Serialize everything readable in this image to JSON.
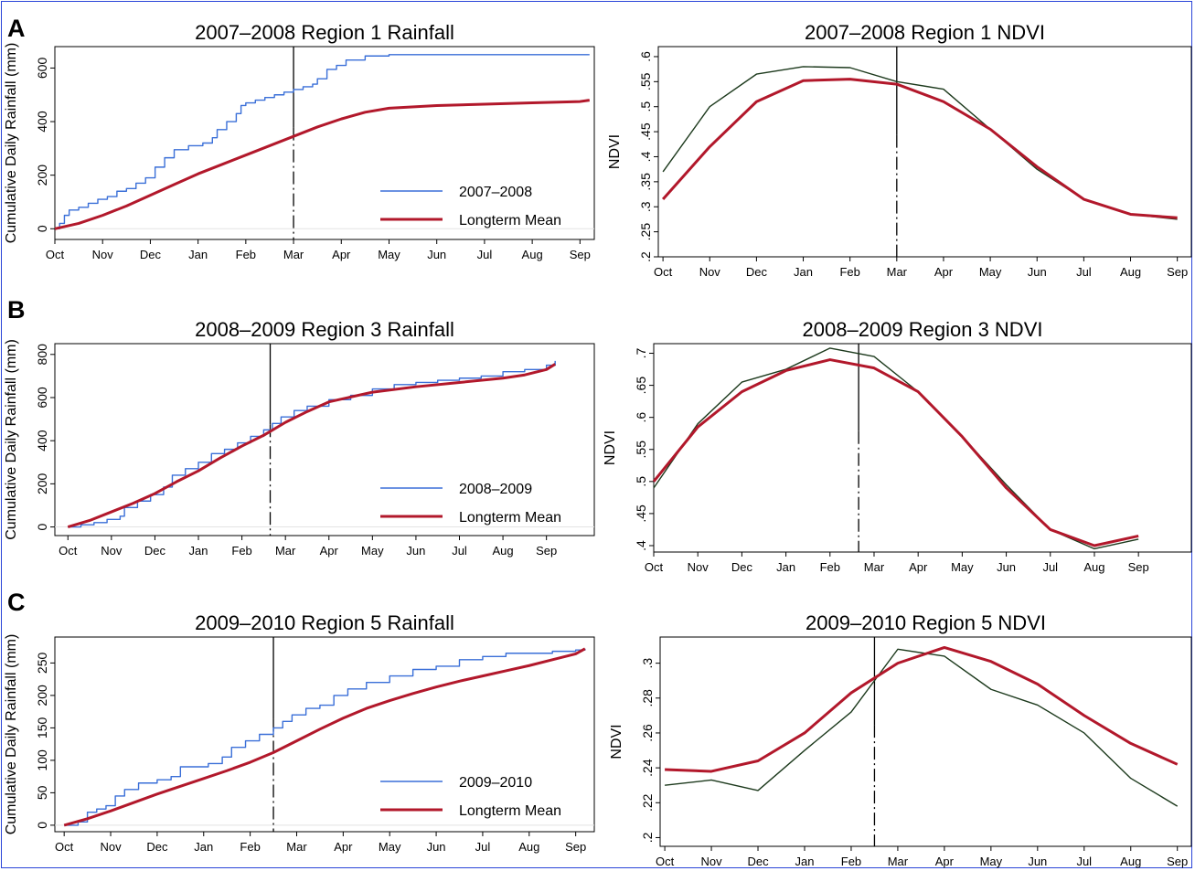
{
  "colors": {
    "frame": "#2a45d8",
    "rain_year": "#3a6fd8",
    "rain_mean": "#b2182b",
    "ndvi_year": "#1d3a1d",
    "ndvi_mean": "#b2182b"
  },
  "panels": [
    {
      "letter": "A"
    },
    {
      "letter": "B"
    },
    {
      "letter": "C"
    }
  ],
  "chart_data": [
    {
      "type": "line",
      "panel": "A",
      "title": "2007–2008 Region 1 Rainfall",
      "ylabel": "Cumulative Daily Rainfall (mm)",
      "xlabel": "",
      "x_ticks": [
        "Oct",
        "Nov",
        "Dec",
        "Jan",
        "Feb",
        "Mar",
        "Apr",
        "May",
        "Jun",
        "Jul",
        "Aug",
        "Sep"
      ],
      "xlim": [
        0,
        11.3
      ],
      "ylim": [
        -40,
        680
      ],
      "y_ticks": [
        0,
        200,
        400,
        600
      ],
      "zero_line": true,
      "marker": {
        "x": 5,
        "style": "solid-dashdot"
      },
      "legend_position": "bottom-right",
      "series": [
        {
          "name": "2007–2008",
          "kind": "step",
          "color": "#3a6fd8",
          "width": 1.4,
          "x": [
            0,
            0.1,
            0.2,
            0.3,
            0.5,
            0.7,
            0.9,
            1.1,
            1.3,
            1.5,
            1.7,
            1.9,
            2.1,
            2.3,
            2.5,
            2.8,
            3.1,
            3.3,
            3.4,
            3.6,
            3.8,
            3.9,
            4.0,
            4.2,
            4.4,
            4.6,
            4.8,
            5.0,
            5.2,
            5.4,
            5.5,
            5.7,
            5.9,
            6.1,
            6.5,
            7.0,
            8.0,
            9.0,
            10.0,
            11.0,
            11.2
          ],
          "y": [
            0,
            20,
            50,
            70,
            80,
            95,
            110,
            120,
            140,
            150,
            170,
            190,
            230,
            265,
            295,
            310,
            320,
            340,
            370,
            400,
            430,
            460,
            470,
            480,
            490,
            500,
            510,
            520,
            530,
            540,
            560,
            595,
            610,
            630,
            645,
            650,
            650,
            650,
            650,
            650,
            650
          ]
        },
        {
          "name": "Longterm Mean",
          "kind": "line",
          "color": "#b2182b",
          "width": 3,
          "x": [
            0,
            0.5,
            1,
            1.5,
            2,
            2.5,
            3,
            3.5,
            4,
            4.5,
            5,
            5.5,
            6,
            6.5,
            7,
            8,
            9,
            10,
            11,
            11.2
          ],
          "y": [
            0,
            20,
            50,
            85,
            125,
            165,
            205,
            240,
            275,
            310,
            345,
            380,
            410,
            435,
            450,
            460,
            465,
            470,
            475,
            480
          ]
        }
      ]
    },
    {
      "type": "line",
      "panel": "A",
      "title": "2007–2008 Region 1 NDVI",
      "ylabel": "NDVI",
      "xlabel": "",
      "x_ticks": [
        "Oct",
        "Nov",
        "Dec",
        "Jan",
        "Feb",
        "Mar",
        "Apr",
        "May",
        "Jun",
        "Jul",
        "Aug",
        "Sep"
      ],
      "xlim": [
        -0.1,
        11.3
      ],
      "ylim": [
        0.2,
        0.62
      ],
      "y_ticks": [
        0.2,
        0.25,
        0.3,
        0.35,
        0.4,
        0.45,
        0.5,
        0.55,
        0.6
      ],
      "y_tick_labels": [
        ".2",
        ".25",
        ".3",
        ".35",
        ".4",
        ".45",
        ".5",
        ".55",
        ".6"
      ],
      "marker": {
        "x": 5,
        "style": "solid-dashdot"
      },
      "series": [
        {
          "kind": "line",
          "color": "#1d3a1d",
          "width": 1.4,
          "x": [
            0,
            1,
            2,
            3,
            4,
            5,
            6,
            7,
            8,
            9,
            10,
            11
          ],
          "y": [
            0.37,
            0.5,
            0.565,
            0.58,
            0.578,
            0.55,
            0.535,
            0.455,
            0.375,
            0.315,
            0.285,
            0.275
          ]
        },
        {
          "kind": "line",
          "color": "#b2182b",
          "width": 3,
          "x": [
            0,
            1,
            2,
            3,
            4,
            5,
            6,
            7,
            8,
            9,
            10,
            11
          ],
          "y": [
            0.315,
            0.42,
            0.51,
            0.552,
            0.555,
            0.545,
            0.51,
            0.455,
            0.38,
            0.315,
            0.285,
            0.278
          ]
        }
      ]
    },
    {
      "type": "line",
      "panel": "B",
      "title": "2008–2009 Region 3 Rainfall",
      "ylabel": "Cumulative Daily Rainfall (mm)",
      "xlabel": "",
      "x_ticks": [
        "Oct",
        "Nov",
        "Dec",
        "Jan",
        "Feb",
        "Mar",
        "Apr",
        "May",
        "Jun",
        "Jul",
        "Aug",
        "Sep"
      ],
      "xlim": [
        -0.3,
        12.1
      ],
      "ylim": [
        -40,
        850
      ],
      "y_ticks": [
        0,
        200,
        400,
        600,
        800
      ],
      "zero_line": true,
      "marker": {
        "x": 4.65,
        "style": "solid-dashdot"
      },
      "legend_position": "bottom-right",
      "series": [
        {
          "name": "2008–2009",
          "kind": "step",
          "color": "#3a6fd8",
          "width": 1.4,
          "x": [
            0,
            0.3,
            0.6,
            0.9,
            1.2,
            1.3,
            1.6,
            1.9,
            2.2,
            2.4,
            2.7,
            3.0,
            3.3,
            3.6,
            3.9,
            4.2,
            4.5,
            4.7,
            4.9,
            5.2,
            5.5,
            6.0,
            6.5,
            7.0,
            7.5,
            8.0,
            8.5,
            9.0,
            9.5,
            10.0,
            10.5,
            11.0,
            11.2
          ],
          "y": [
            0,
            10,
            20,
            35,
            50,
            90,
            120,
            150,
            185,
            240,
            270,
            300,
            340,
            360,
            390,
            420,
            450,
            480,
            510,
            540,
            560,
            590,
            610,
            640,
            660,
            670,
            680,
            690,
            700,
            720,
            730,
            750,
            770
          ]
        },
        {
          "name": "Longterm Mean",
          "kind": "line",
          "color": "#b2182b",
          "width": 3,
          "x": [
            0,
            0.5,
            1,
            1.5,
            2,
            2.5,
            3,
            3.5,
            4,
            4.5,
            5,
            5.5,
            6,
            7,
            8,
            9,
            10,
            10.5,
            11,
            11.2
          ],
          "y": [
            0,
            30,
            70,
            110,
            155,
            210,
            260,
            320,
            375,
            425,
            485,
            535,
            580,
            625,
            650,
            670,
            690,
            705,
            730,
            755
          ]
        }
      ]
    },
    {
      "type": "line",
      "panel": "B",
      "title": "2008–2009 Region 3 NDVI",
      "ylabel": "NDVI",
      "xlabel": "",
      "x_ticks": [
        "Oct",
        "Nov",
        "Dec",
        "Jan",
        "Feb",
        "Mar",
        "Apr",
        "May",
        "Jun",
        "Jul",
        "Aug",
        "Sep"
      ],
      "xlim": [
        0,
        12.2
      ],
      "ylim": [
        0.39,
        0.715
      ],
      "y_ticks": [
        0.4,
        0.45,
        0.5,
        0.55,
        0.6,
        0.65,
        0.7
      ],
      "y_tick_labels": [
        ".4",
        ".45",
        ".5",
        ".55",
        ".6",
        ".65",
        ".7"
      ],
      "marker": {
        "x": 4.65,
        "style": "solid-dashdot"
      },
      "series": [
        {
          "kind": "line",
          "color": "#1d3a1d",
          "width": 1.4,
          "x": [
            0,
            1,
            2,
            3,
            4,
            5,
            6,
            7,
            8,
            9,
            10,
            11
          ],
          "y": [
            0.49,
            0.59,
            0.655,
            0.675,
            0.708,
            0.695,
            0.64,
            0.57,
            0.495,
            0.425,
            0.395,
            0.41
          ]
        },
        {
          "kind": "line",
          "color": "#b2182b",
          "width": 3,
          "x": [
            0,
            1,
            2,
            3,
            4,
            5,
            6,
            7,
            8,
            9,
            10,
            11
          ],
          "y": [
            0.5,
            0.585,
            0.64,
            0.673,
            0.69,
            0.677,
            0.64,
            0.57,
            0.49,
            0.425,
            0.4,
            0.415
          ]
        }
      ]
    },
    {
      "type": "line",
      "panel": "C",
      "title": "2009–2010 Region 5 Rainfall",
      "ylabel": "Cumulative Daily Rainfall (mm)",
      "xlabel": "",
      "x_ticks": [
        "Oct",
        "Nov",
        "Dec",
        "Jan",
        "Feb",
        "Mar",
        "Apr",
        "May",
        "Jun",
        "Jul",
        "Aug",
        "Sep"
      ],
      "xlim": [
        -0.2,
        11.4
      ],
      "ylim": [
        -10,
        290
      ],
      "y_ticks": [
        0,
        50,
        100,
        150,
        200,
        250
      ],
      "zero_line": true,
      "marker": {
        "x": 4.5,
        "style": "solid-dashdot"
      },
      "legend_position": "bottom-right",
      "series": [
        {
          "name": "2009–2010",
          "kind": "step",
          "color": "#3a6fd8",
          "width": 1.4,
          "x": [
            0,
            0.3,
            0.5,
            0.7,
            0.9,
            1.1,
            1.3,
            1.6,
            2.0,
            2.3,
            2.5,
            2.8,
            3.1,
            3.4,
            3.6,
            3.9,
            4.2,
            4.5,
            4.7,
            4.9,
            5.2,
            5.5,
            5.8,
            6.1,
            6.5,
            7.0,
            7.5,
            8.0,
            8.5,
            9.0,
            9.5,
            10.0,
            10.5,
            11.0,
            11.2
          ],
          "y": [
            0,
            5,
            20,
            25,
            30,
            45,
            55,
            65,
            70,
            75,
            90,
            90,
            95,
            105,
            120,
            130,
            140,
            150,
            160,
            170,
            180,
            185,
            200,
            210,
            220,
            230,
            240,
            245,
            255,
            260,
            265,
            265,
            268,
            270,
            272
          ]
        },
        {
          "name": "Longterm Mean",
          "kind": "line",
          "color": "#b2182b",
          "width": 3,
          "x": [
            0,
            0.5,
            1,
            1.5,
            2,
            2.5,
            3,
            3.5,
            4,
            4.5,
            5,
            5.5,
            6,
            6.5,
            7,
            7.5,
            8,
            8.5,
            9,
            9.5,
            10,
            10.5,
            11,
            11.2
          ],
          "y": [
            0,
            10,
            22,
            35,
            48,
            60,
            72,
            84,
            97,
            112,
            130,
            148,
            165,
            180,
            192,
            203,
            213,
            222,
            230,
            238,
            246,
            255,
            264,
            272
          ]
        }
      ]
    },
    {
      "type": "line",
      "panel": "C",
      "title": "2009–2010 Region 5 NDVI",
      "ylabel": "NDVI",
      "xlabel": "",
      "x_ticks": [
        "Oct",
        "Nov",
        "Dec",
        "Jan",
        "Feb",
        "Mar",
        "Apr",
        "May",
        "Jun",
        "Jul",
        "Aug",
        "Sep"
      ],
      "xlim": [
        -0.1,
        11.3
      ],
      "ylim": [
        0.195,
        0.315
      ],
      "y_ticks": [
        0.2,
        0.22,
        0.24,
        0.26,
        0.28,
        0.3
      ],
      "y_tick_labels": [
        ".2",
        ".22",
        ".24",
        ".26",
        ".28",
        ".3"
      ],
      "marker": {
        "x": 4.5,
        "style": "solid-dashdot"
      },
      "series": [
        {
          "kind": "line",
          "color": "#1d3a1d",
          "width": 1.4,
          "x": [
            0,
            1,
            2,
            3,
            4,
            5,
            6,
            7,
            8,
            9,
            10,
            11
          ],
          "y": [
            0.23,
            0.233,
            0.227,
            0.25,
            0.272,
            0.308,
            0.304,
            0.285,
            0.276,
            0.26,
            0.234,
            0.218
          ]
        },
        {
          "kind": "line",
          "color": "#b2182b",
          "width": 3,
          "x": [
            0,
            1,
            2,
            3,
            4,
            5,
            6,
            7,
            8,
            9,
            10,
            11
          ],
          "y": [
            0.239,
            0.238,
            0.244,
            0.26,
            0.283,
            0.3,
            0.309,
            0.301,
            0.288,
            0.27,
            0.254,
            0.242
          ]
        }
      ]
    }
  ]
}
